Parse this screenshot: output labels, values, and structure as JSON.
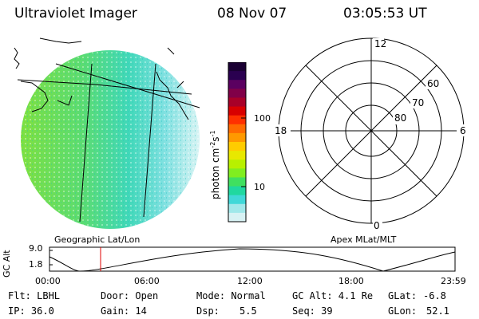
{
  "header": {
    "title": "Ultraviolet Imager",
    "date": "08 Nov 07",
    "time": "03:05:53 UT"
  },
  "colorbar": {
    "unit_label": "photon cm",
    "unit_sup1": "-2",
    "unit_mid": "s",
    "unit_sup2": "-1",
    "ticks": [
      "100",
      "10"
    ],
    "colors": [
      "#1a0033",
      "#2a0050",
      "#5a0060",
      "#800048",
      "#a80028",
      "#d80000",
      "#ff3000",
      "#ff6a00",
      "#ff9900",
      "#ffcc00",
      "#e8e800",
      "#b8f000",
      "#80ee20",
      "#40e060",
      "#20d8a0",
      "#40d8d8",
      "#a0e8ea",
      "#d8f2f4"
    ]
  },
  "panels": {
    "left_label": "Geographic Lat/Lon",
    "right_label": "Apex MLat/MLT",
    "polar": {
      "top": "12",
      "left": "18",
      "right": "6",
      "bottom": "0",
      "lat_labels": [
        "60",
        "70",
        "80"
      ]
    }
  },
  "altitude": {
    "ylabel": "GC Alt",
    "y_ticks": [
      "9.0",
      "1.8"
    ],
    "x_ticks": [
      "00:00",
      "06:00",
      "12:00",
      "18:00",
      "23:59"
    ]
  },
  "footer": {
    "row1": {
      "flt": "Flt: LBHL",
      "door": "Door: Open",
      "mode": "Mode: Normal",
      "gcalt": "GC Alt: 4.1 Re",
      "glat_label": "GLat:",
      "glat": "-6.8"
    },
    "row2": {
      "ip": "IP: 36.0",
      "gain": "Gain: 14",
      "dsp_label": "Dsp:",
      "dsp": "5.5",
      "seq": "Seq: 39",
      "glon_label": "GLon:",
      "glon": "52.1"
    }
  }
}
